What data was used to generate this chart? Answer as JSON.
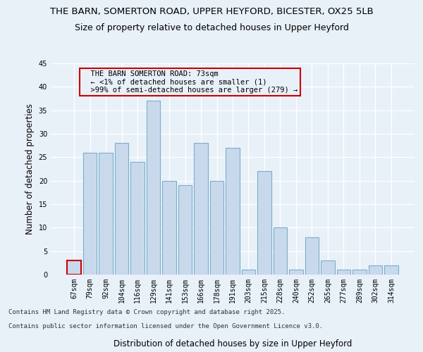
{
  "title_line1": "THE BARN, SOMERTON ROAD, UPPER HEYFORD, BICESTER, OX25 5LB",
  "title_line2": "Size of property relative to detached houses in Upper Heyford",
  "xlabel": "Distribution of detached houses by size in Upper Heyford",
  "ylabel": "Number of detached properties",
  "categories": [
    "67sqm",
    "79sqm",
    "92sqm",
    "104sqm",
    "116sqm",
    "129sqm",
    "141sqm",
    "153sqm",
    "166sqm",
    "178sqm",
    "191sqm",
    "203sqm",
    "215sqm",
    "228sqm",
    "240sqm",
    "252sqm",
    "265sqm",
    "277sqm",
    "289sqm",
    "302sqm",
    "314sqm"
  ],
  "values": [
    3,
    26,
    26,
    28,
    24,
    37,
    20,
    19,
    28,
    20,
    27,
    1,
    22,
    10,
    1,
    8,
    3,
    1,
    1,
    2,
    2
  ],
  "bar_color": "#c9d9ec",
  "bar_edge_color": "#7aaecd",
  "red_bar_index": 0,
  "red_bar_edge_color": "#cc0000",
  "annotation_box_text": "  THE BARN SOMERTON ROAD: 73sqm\n  ← <1% of detached houses are smaller (1)\n  >99% of semi-detached houses are larger (279) →",
  "footer_line1": "Contains HM Land Registry data © Crown copyright and database right 2025.",
  "footer_line2": "Contains public sector information licensed under the Open Government Licence v3.0.",
  "ylim": [
    0,
    45
  ],
  "yticks": [
    0,
    5,
    10,
    15,
    20,
    25,
    30,
    35,
    40,
    45
  ],
  "background_color": "#e8f0f8",
  "grid_color": "#ffffff",
  "title_fontsize": 9.5,
  "subtitle_fontsize": 9,
  "axis_label_fontsize": 8.5,
  "tick_fontsize": 7,
  "footer_fontsize": 6.5,
  "annotation_fontsize": 7.5
}
